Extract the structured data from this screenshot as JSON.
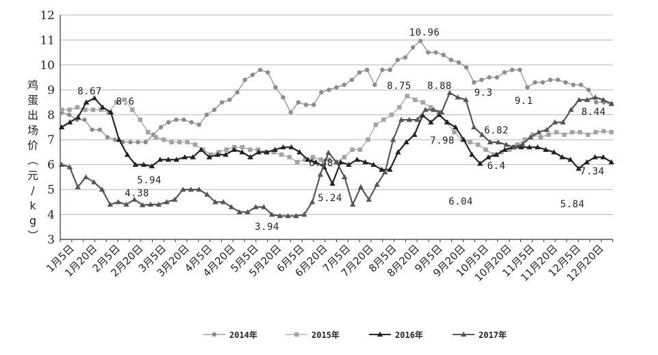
{
  "chart_data": {
    "type": "line",
    "xlabel": "",
    "ylabel": "鸡蛋出场价（元/kg）",
    "ylim": [
      3,
      12
    ],
    "yticks": [
      "3",
      "4",
      "5",
      "6",
      "7",
      "8",
      "9",
      "10",
      "11",
      "12"
    ],
    "grid": "horizontal",
    "legend_position": "bottom",
    "x_tick_labels": [
      "1月5日",
      "1月20日",
      "2月5日",
      "2月20日",
      "3月5日",
      "3月20日",
      "4月5日",
      "4月20日",
      "5月5日",
      "5月20日",
      "6月5日",
      "6月20日",
      "7月5日",
      "7月20日",
      "8月5日",
      "8月20日",
      "9月5日",
      "9月20日",
      "10月5日",
      "10月20日",
      "11月5日",
      "11月20日",
      "12月5日",
      "12月20日"
    ],
    "series": [
      {
        "name": "2014年",
        "color": "#8c8c8c",
        "marker": "circle",
        "values": [
          8.1,
          8.0,
          7.8,
          7.8,
          7.4,
          7.4,
          7.1,
          7.0,
          6.9,
          6.9,
          6.9,
          6.9,
          7.2,
          7.5,
          7.7,
          7.8,
          7.8,
          7.7,
          7.6,
          8.0,
          8.2,
          8.5,
          8.6,
          8.9,
          9.4,
          9.6,
          9.8,
          9.7,
          9.1,
          8.7,
          8.1,
          8.5,
          8.4,
          8.4,
          8.9,
          9.0,
          9.1,
          9.2,
          9.4,
          9.7,
          9.8,
          9.2,
          9.8,
          9.8,
          10.2,
          10.3,
          10.7,
          10.96,
          10.5,
          10.5,
          10.4,
          10.2,
          10.1,
          9.9,
          9.3,
          9.4,
          9.5,
          9.5,
          9.7,
          9.8,
          9.8,
          9.1,
          9.3,
          9.3,
          9.4,
          9.4,
          9.3,
          9.2,
          9.2,
          9.0,
          8.5,
          8.5,
          8.44
        ]
      },
      {
        "name": "2015年",
        "color": "#a3a3a3",
        "marker": "square",
        "values": [
          8.2,
          8.2,
          8.3,
          8.2,
          8.2,
          8.2,
          8.1,
          8.5,
          8.6,
          8.2,
          7.8,
          7.3,
          7.1,
          7.0,
          6.9,
          6.9,
          6.9,
          6.8,
          6.6,
          6.4,
          6.5,
          6.6,
          6.7,
          6.7,
          6.6,
          6.6,
          6.5,
          6.5,
          6.4,
          6.3,
          6.1,
          6.2,
          6.3,
          6.2,
          6.2,
          6.1,
          6.3,
          6.6,
          6.6,
          7.0,
          7.6,
          7.8,
          8.0,
          8.3,
          8.75,
          8.6,
          8.5,
          8.3,
          8.1,
          7.7,
          7.3,
          7.0,
          6.9,
          6.8,
          6.6,
          6.4,
          6.5,
          6.6,
          6.8,
          7.0,
          7.2,
          7.1,
          7.2,
          7.3,
          7.2,
          7.3,
          7.3,
          7.2,
          7.3,
          7.34,
          7.3
        ]
      },
      {
        "name": "2016年",
        "color": "#222222",
        "marker": "triangle",
        "values": [
          7.5,
          7.7,
          7.9,
          8.5,
          8.67,
          8.3,
          8.1,
          7.0,
          6.4,
          6.0,
          6.0,
          5.94,
          6.2,
          6.2,
          6.2,
          6.3,
          6.3,
          6.6,
          6.3,
          6.4,
          6.4,
          6.6,
          6.5,
          6.3,
          6.5,
          6.5,
          6.6,
          6.7,
          6.7,
          6.5,
          6.2,
          6.1,
          5.9,
          5.24,
          6.1,
          6.0,
          6.2,
          6.1,
          6.0,
          5.8,
          5.8,
          6.5,
          6.9,
          7.2,
          7.98,
          7.7,
          8.0,
          7.7,
          7.5,
          7.0,
          6.4,
          6.04,
          6.3,
          6.4,
          6.6,
          6.7,
          6.7,
          6.7,
          6.7,
          6.6,
          6.5,
          6.3,
          6.2,
          5.84,
          6.1,
          6.3,
          6.3,
          6.1
        ]
      },
      {
        "name": "2017年",
        "color": "#555555",
        "marker": "triangle",
        "values": [
          6.0,
          5.9,
          5.1,
          5.5,
          5.3,
          5.0,
          4.4,
          4.5,
          4.4,
          4.6,
          4.38,
          4.4,
          4.4,
          4.5,
          4.6,
          5.0,
          5.0,
          5.0,
          4.8,
          4.5,
          4.5,
          4.3,
          4.1,
          4.1,
          4.3,
          4.3,
          4.0,
          3.94,
          3.94,
          3.94,
          4.0,
          4.5,
          5.6,
          6.48,
          6.1,
          5.5,
          4.4,
          5.1,
          4.6,
          5.2,
          5.7,
          7.0,
          7.8,
          7.8,
          7.8,
          8.2,
          8.2,
          8.1,
          8.88,
          8.7,
          8.6,
          7.5,
          7.2,
          6.9,
          6.9,
          6.8,
          6.7,
          6.82,
          7.1,
          7.3,
          7.4,
          7.7,
          7.7,
          8.2,
          8.6,
          8.6,
          8.7,
          8.6,
          8.44
        ]
      }
    ],
    "annotations": [
      "10.96",
      "8.67",
      "8.6",
      "8.75",
      "8.88",
      "9.3",
      "9.1",
      "8.44",
      "7.34",
      "7.98",
      "6.82",
      "6.48",
      "5.94",
      "5.24",
      "6.04",
      "6.4",
      "5.84",
      "4.38",
      "3.94"
    ]
  }
}
